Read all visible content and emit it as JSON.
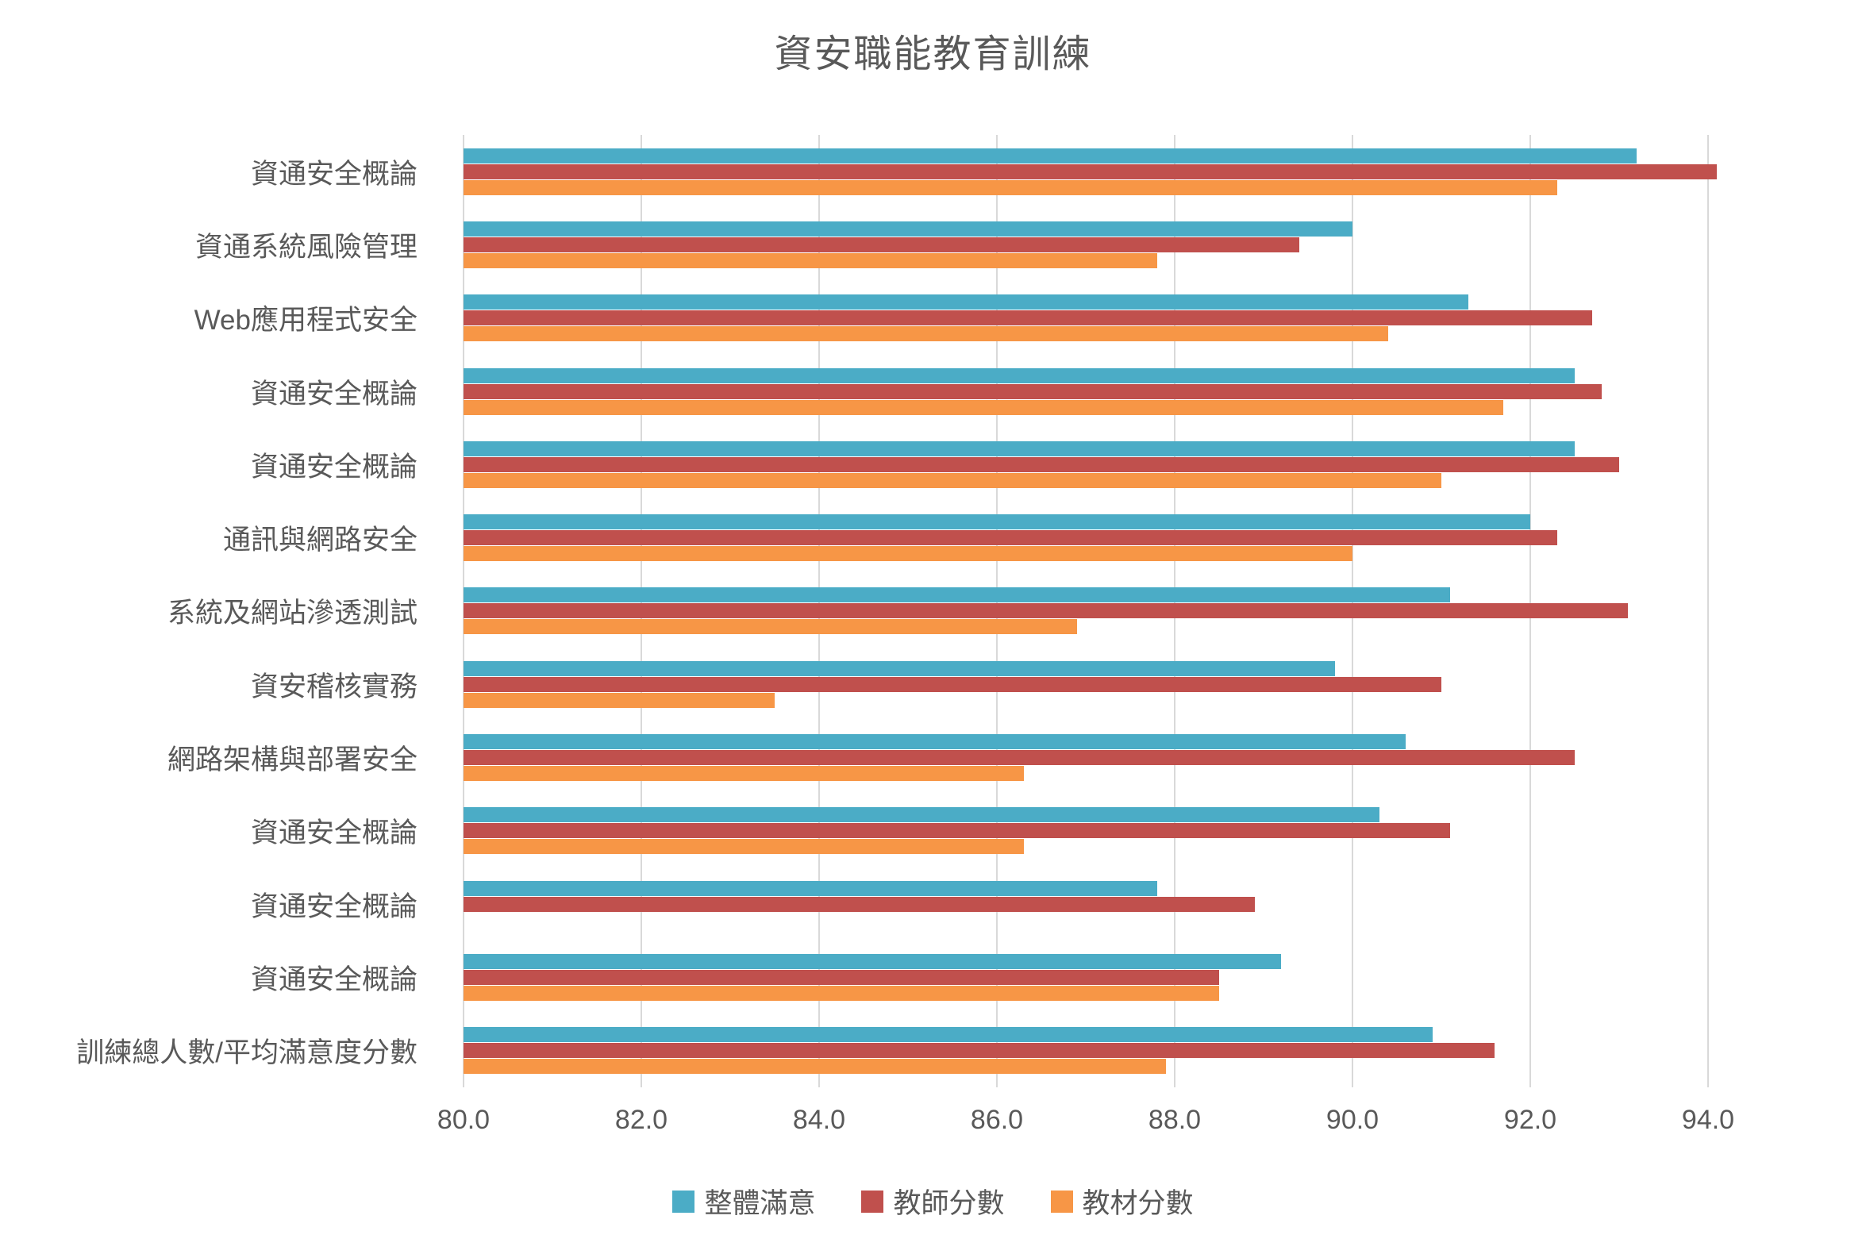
{
  "chart_data": {
    "type": "bar",
    "orientation": "horizontal",
    "grouped": true,
    "title": "資安職能教育訓練",
    "categories": [
      "資通安全概論",
      "資通系統風險管理",
      "Web應用程式安全",
      "資通安全概論",
      "資通安全概論",
      "通訊與網路安全",
      "系統及網站滲透測試",
      "資安稽核實務",
      "網路架構與部署安全",
      "資通安全概論",
      "資通安全概論",
      "資通安全概論",
      "訓練總人數/平均滿意度分數"
    ],
    "series": [
      {
        "name": "整體滿意",
        "color": "#4BACC6",
        "values": [
          93.2,
          90.0,
          91.3,
          92.5,
          92.5,
          92.0,
          91.1,
          89.8,
          90.6,
          90.3,
          87.8,
          89.2,
          90.9
        ]
      },
      {
        "name": "教師分數",
        "color": "#C0504D",
        "values": [
          94.1,
          89.4,
          92.7,
          92.8,
          93.0,
          92.3,
          93.1,
          91.0,
          92.5,
          91.1,
          88.9,
          88.5,
          91.6
        ]
      },
      {
        "name": "教材分數",
        "color": "#F79646",
        "values": [
          92.3,
          87.8,
          90.4,
          91.7,
          91.0,
          90.0,
          86.9,
          83.5,
          86.3,
          86.3,
          null,
          88.5,
          87.9
        ]
      }
    ],
    "x_axis": {
      "min": 80.0,
      "max": 94.0,
      "tick_step": 2.0,
      "tick_labels": [
        "80.0",
        "82.0",
        "84.0",
        "86.0",
        "88.0",
        "90.0",
        "92.0",
        "94.0"
      ]
    },
    "grid": true,
    "gridline_color": "#D9D9D9",
    "text_color": "#595959",
    "legend_position": "bottom"
  }
}
